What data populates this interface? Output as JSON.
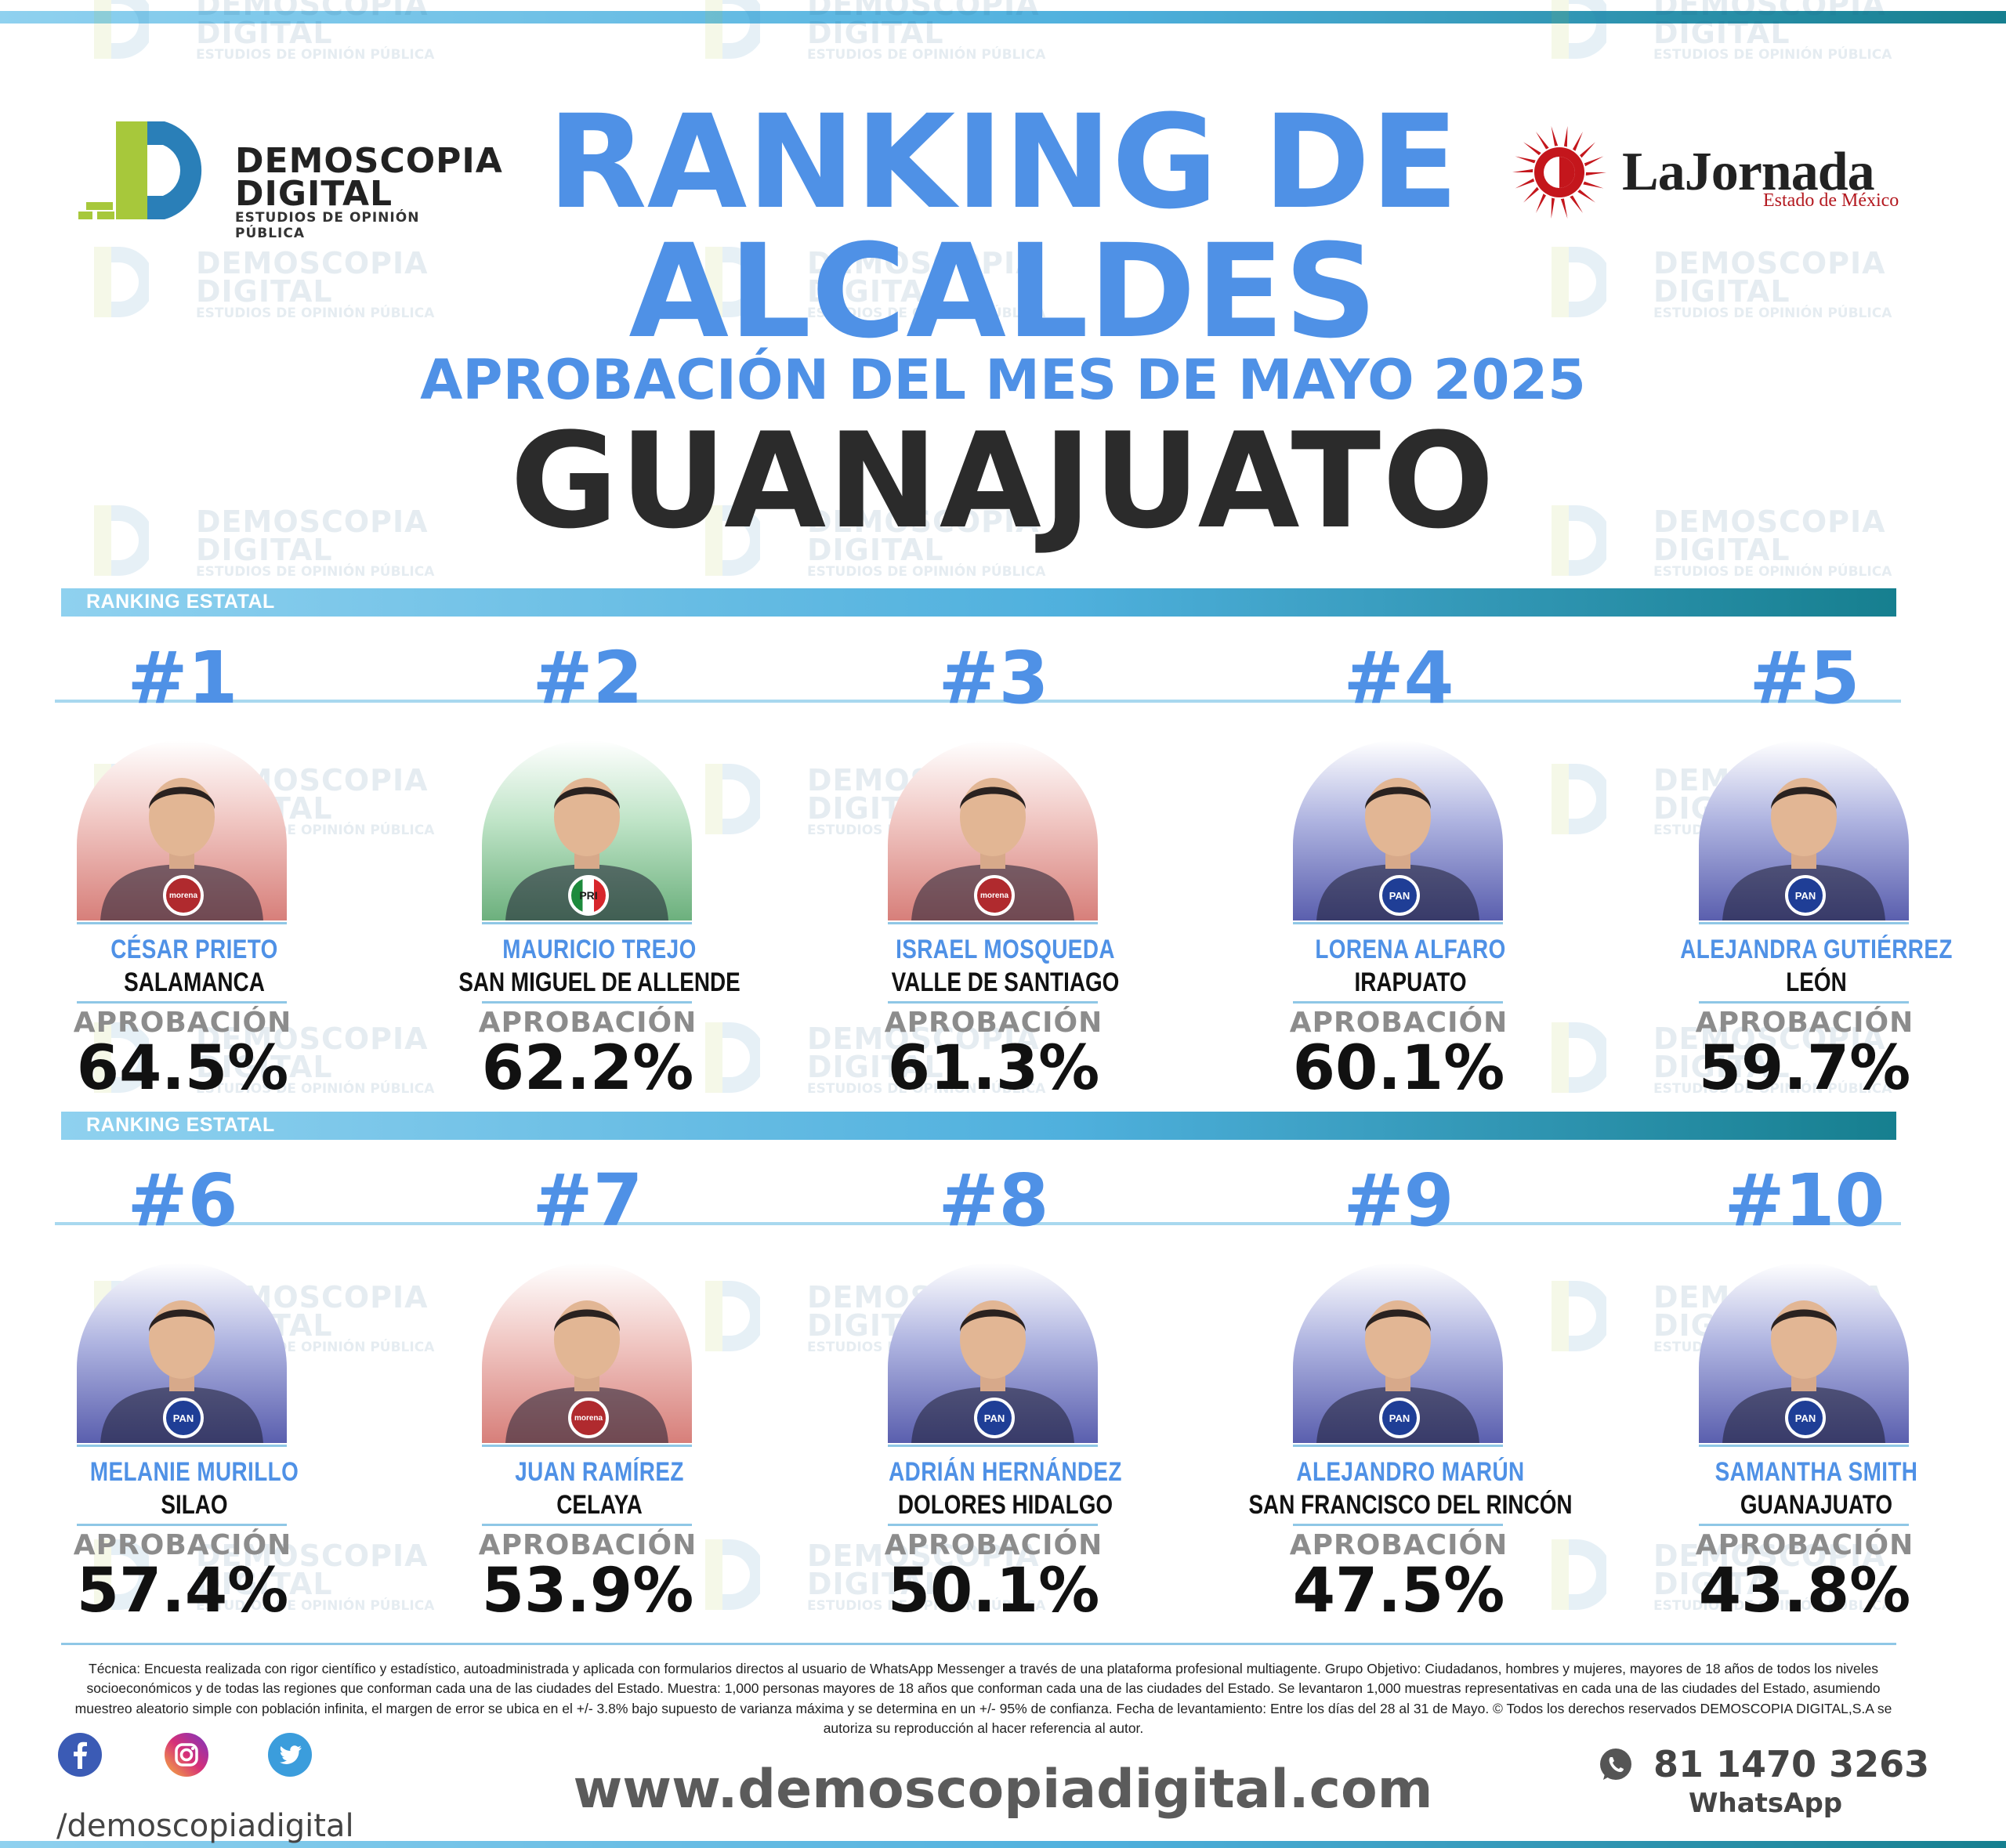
{
  "header": {
    "title_line1": "RANKING DE",
    "title_line2": "ALCALDES",
    "subtitle": "APROBACIÓN DEL MES DE MAYO 2025",
    "state": "GUANAJUATO"
  },
  "brand": {
    "name_line1": "DEMOSCOPIA",
    "name_line2": "DIGITAL",
    "tagline": "ESTUDIOS DE OPINIÓN PÚBLICA",
    "partner_name": "LaJornada",
    "partner_sub": "Estado de México"
  },
  "colors": {
    "accent_blue": "#4f91e6",
    "bar_gradient_start": "#8fd1ef",
    "bar_gradient_end": "#167f8f",
    "morena": "#b02a2e",
    "pan": "#1f3e96"
  },
  "sections": [
    {
      "label": "RANKING ESTATAL"
    },
    {
      "label": "RANKING ESTATAL"
    }
  ],
  "approval_label": "APROBACIÓN",
  "mayors": [
    {
      "rank": "#1",
      "name": "CÉSAR PRIETO",
      "city": "SALAMANCA",
      "approval": "64.5%",
      "party": "morena",
      "bg": "red",
      "icon": "mayor-portrait"
    },
    {
      "rank": "#2",
      "name": "MAURICIO TREJO",
      "city": "SAN MIGUEL DE ALLENDE",
      "approval": "62.2%",
      "party": "PRI",
      "bg": "green",
      "icon": "mayor-portrait"
    },
    {
      "rank": "#3",
      "name": "ISRAEL MOSQUEDA",
      "city": "VALLE DE SANTIAGO",
      "approval": "61.3%",
      "party": "morena",
      "bg": "red",
      "icon": "mayor-portrait"
    },
    {
      "rank": "#4",
      "name": "LORENA ALFARO",
      "city": "IRAPUATO",
      "approval": "60.1%",
      "party": "PAN",
      "bg": "blue",
      "icon": "mayor-portrait"
    },
    {
      "rank": "#5",
      "name": "ALEJANDRA GUTIÉRREZ",
      "city": "LEÓN",
      "approval": "59.7%",
      "party": "PAN",
      "bg": "blue",
      "icon": "mayor-portrait"
    },
    {
      "rank": "#6",
      "name": "MELANIE MURILLO",
      "city": "SILAO",
      "approval": "57.4%",
      "party": "PAN",
      "bg": "blue",
      "icon": "mayor-portrait"
    },
    {
      "rank": "#7",
      "name": "JUAN RAMÍREZ",
      "city": "CELAYA",
      "approval": "53.9%",
      "party": "morena",
      "bg": "red",
      "icon": "mayor-portrait"
    },
    {
      "rank": "#8",
      "name": "ADRIÁN HERNÁNDEZ",
      "city": "DOLORES HIDALGO",
      "approval": "50.1%",
      "party": "PAN",
      "bg": "blue",
      "icon": "mayor-portrait"
    },
    {
      "rank": "#9",
      "name": "ALEJANDRO MARÚN",
      "city": "SAN FRANCISCO DEL RINCÓN",
      "approval": "47.5%",
      "party": "PAN",
      "bg": "blue",
      "icon": "mayor-portrait"
    },
    {
      "rank": "#10",
      "name": "SAMANTHA SMITH",
      "city": "GUANAJUATO",
      "approval": "43.8%",
      "party": "PAN",
      "bg": "blue",
      "icon": "mayor-portrait"
    }
  ],
  "footer": {
    "methodology": "Técnica: Encuesta realizada con rigor científico y estadístico, autoadministrada y aplicada con formularios directos al usuario de WhatsApp Messenger a través de una plataforma profesional multiagente. Grupo Objetivo: Ciudadanos, hombres y mujeres, mayores de 18 años de todos los niveles socioeconómicos y de todas las regiones que conforman cada una de las ciudades del Estado. Muestra: 1,000 personas mayores de 18 años que conforman cada una de las ciudades del Estado. Se levantaron 1,000 muestras representativas en cada una de las ciudades del Estado, asumiendo muestreo aleatorio simple con población infinita, el margen de error se ubica en el +/- 3.8% bajo supuesto de varianza máxima y se determina en un +/- 95% de confianza. Fecha de levantamiento: Entre los días del 28 al 31 de Mayo. © Todos los derechos reservados DEMOSCOPIA DIGITAL,S.A se autoriza su reproducción al hacer referencia al autor.",
    "website": "www.demoscopiadigital.com",
    "social_handle": "/demoscopiadigital",
    "phone": "81 1470 3263",
    "whatsapp_label": "WhatsApp",
    "social_icons": [
      "facebook-icon",
      "instagram-icon",
      "twitter-icon"
    ]
  }
}
